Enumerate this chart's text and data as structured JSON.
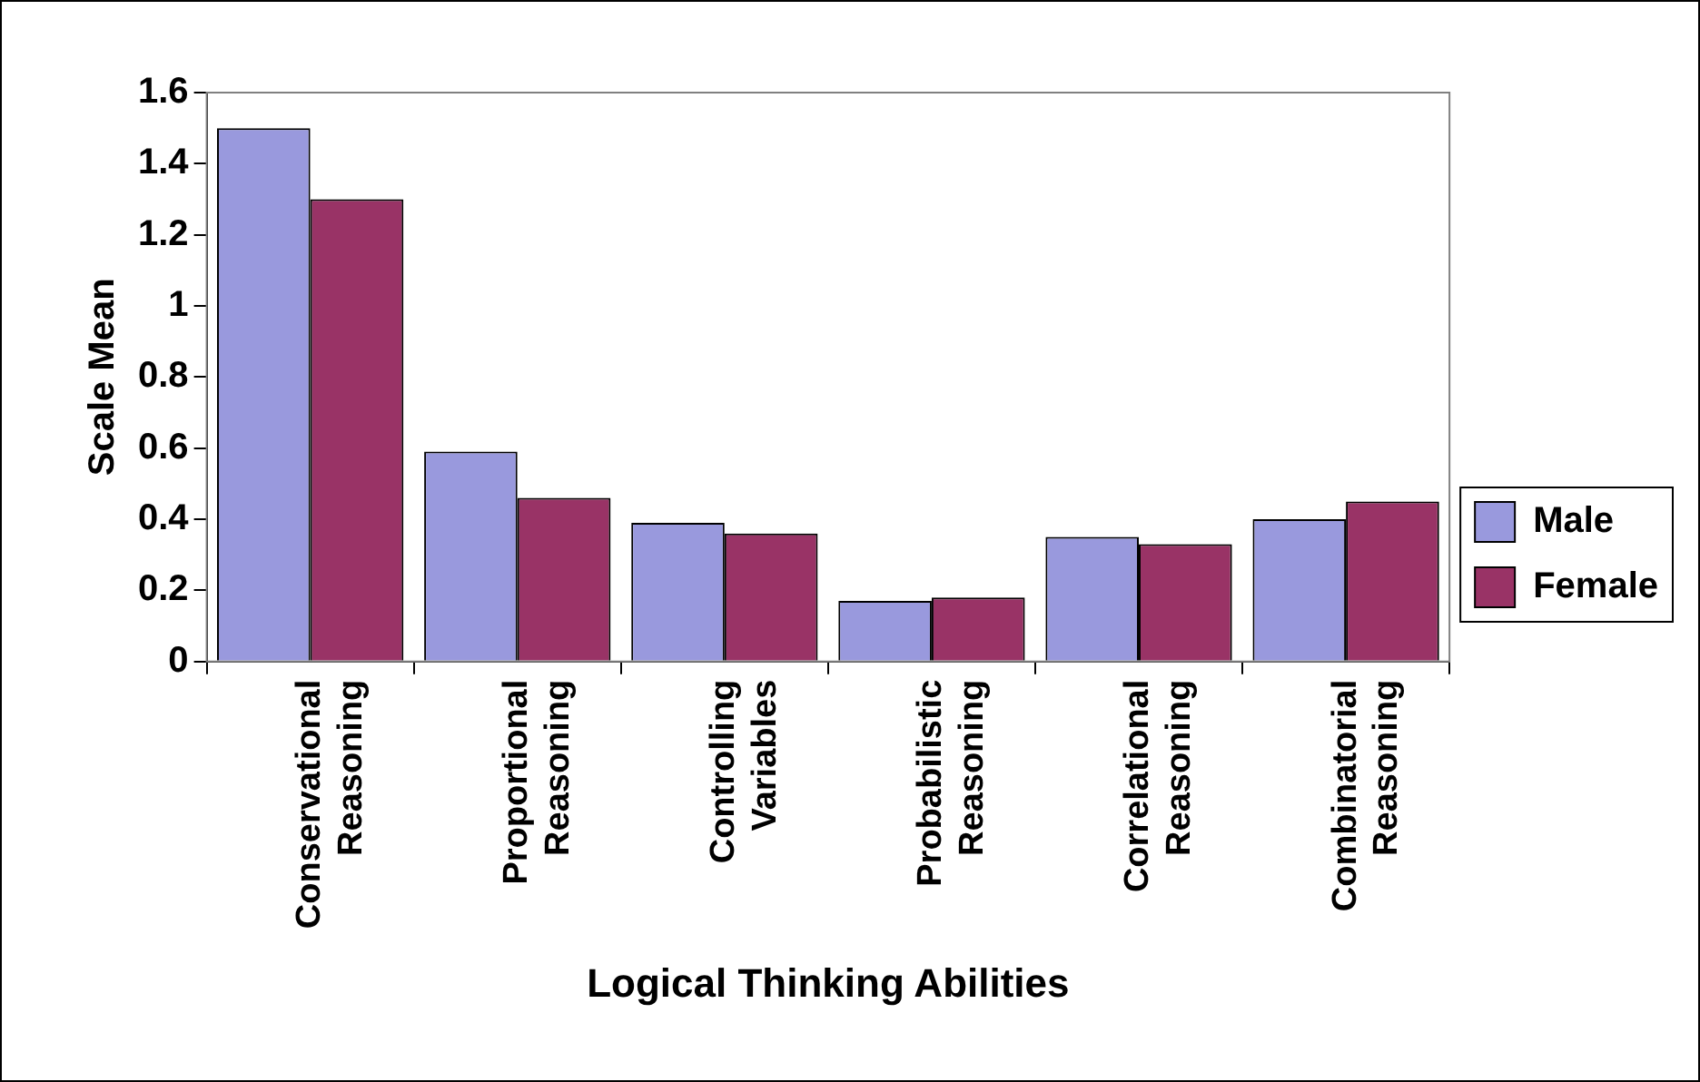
{
  "chart_data": {
    "type": "bar",
    "xlabel": "Logical Thinking Abilities",
    "ylabel": "Scale Mean",
    "categories": [
      "Conservational Reasoning",
      "Proportional Reasoning",
      "Controlling Variables",
      "Probabilistic Reasoning",
      "Correlational Reasoning",
      "Combinatorial Reasoning"
    ],
    "series": [
      {
        "name": "Male",
        "color": "#9999dd",
        "values": [
          1.5,
          0.59,
          0.39,
          0.17,
          0.35,
          0.4
        ]
      },
      {
        "name": "Female",
        "color": "#993366",
        "values": [
          1.3,
          0.46,
          0.36,
          0.18,
          0.33,
          0.45
        ]
      }
    ],
    "ylim": [
      0,
      1.6
    ],
    "yticks": [
      0,
      0.2,
      0.4,
      0.6,
      0.8,
      1,
      1.2,
      1.4,
      1.6
    ],
    "grid": false,
    "legend": "right"
  }
}
